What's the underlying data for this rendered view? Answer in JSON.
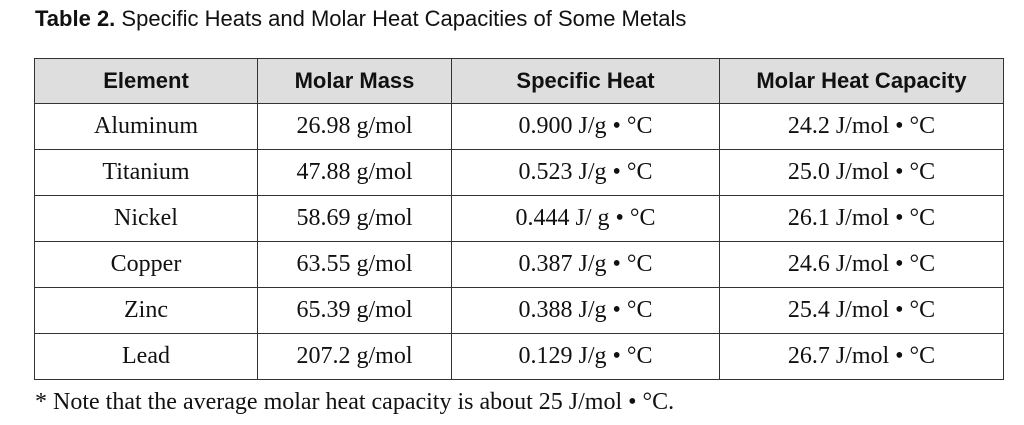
{
  "caption": {
    "label": "Table 2.",
    "text": "Specific Heats and Molar Heat Capacities of Some Metals"
  },
  "table": {
    "headers": [
      "Element",
      "Molar Mass",
      "Specific Heat",
      "Molar Heat Capacity"
    ],
    "rows": [
      [
        "Aluminum",
        "26.98 g/mol",
        "0.900 J/g • °C",
        "24.2 J/mol • °C"
      ],
      [
        "Titanium",
        "47.88 g/mol",
        "0.523 J/g • °C",
        "25.0 J/mol • °C"
      ],
      [
        "Nickel",
        "58.69 g/mol",
        "0.444 J/ g • °C",
        "26.1 J/mol • °C"
      ],
      [
        "Copper",
        "63.55 g/mol",
        "0.387 J/g • °C",
        "24.6 J/mol • °C"
      ],
      [
        "Zinc",
        "65.39 g/mol",
        "0.388 J/g • °C",
        "25.4 J/mol • °C"
      ],
      [
        "Lead",
        "207.2 g/mol",
        "0.129 J/g • °C",
        "26.7 J/mol • °C"
      ]
    ]
  },
  "footnote": "* Note that the average molar heat capacity is about 25 J/mol • °C."
}
